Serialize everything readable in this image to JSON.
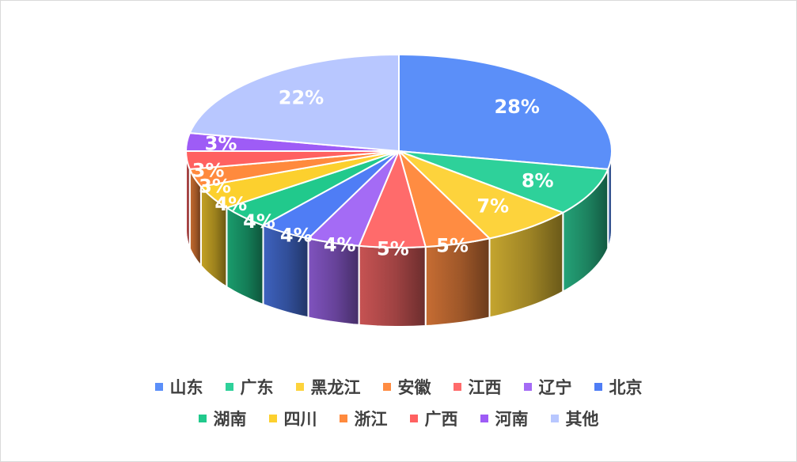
{
  "chart_data": {
    "type": "pie",
    "style": "3d",
    "slices": [
      {
        "label": "山东",
        "value": 28,
        "display": "28%",
        "color": "#5b8ff9"
      },
      {
        "label": "广东",
        "value": 8,
        "display": "8%",
        "color": "#2ed19a"
      },
      {
        "label": "黑龙江",
        "value": 7,
        "display": "7%",
        "color": "#fdd33c"
      },
      {
        "label": "安徽",
        "value": 5,
        "display": "5%",
        "color": "#ff8c42"
      },
      {
        "label": "江西",
        "value": 5,
        "display": "5%",
        "color": "#ff6b6b"
      },
      {
        "label": "辽宁",
        "value": 4,
        "display": "4%",
        "color": "#a46bf5"
      },
      {
        "label": "北京",
        "value": 4,
        "display": "4%",
        "color": "#4f7df5"
      },
      {
        "label": "湖南",
        "value": 4,
        "display": "4%",
        "color": "#21c98c"
      },
      {
        "label": "四川",
        "value": 4,
        "display": "4%",
        "color": "#fcd02e"
      },
      {
        "label": "浙江",
        "value": 3,
        "display": "3%",
        "color": "#ff8a3d"
      },
      {
        "label": "广西",
        "value": 3,
        "display": "3%",
        "color": "#ff6161"
      },
      {
        "label": "河南",
        "value": 3,
        "display": "3%",
        "color": "#9e5cf6"
      },
      {
        "label": "其他",
        "value": 22,
        "display": "22%",
        "color": "#b8c7ff"
      }
    ],
    "legend_position": "bottom"
  },
  "legend": {
    "rows": [
      [
        "山东",
        "广东",
        "黑龙江",
        "安徽",
        "江西",
        "辽宁",
        "北京"
      ],
      [
        "湖南",
        "四川",
        "浙江",
        "广西",
        "河南",
        "其他"
      ]
    ]
  }
}
